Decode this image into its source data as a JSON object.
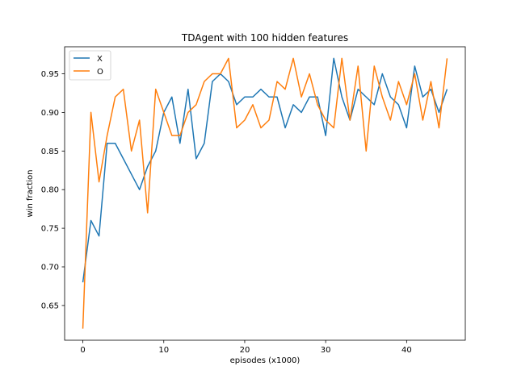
{
  "chart_data": {
    "type": "line",
    "title": "TDAgent with 100 hidden features",
    "xlabel": "episodes (x1000)",
    "ylabel": "win fraction",
    "xlim": [
      -2.25,
      47.25
    ],
    "ylim": [
      0.605,
      0.985
    ],
    "xticks": [
      0,
      10,
      20,
      30,
      40
    ],
    "xtick_labels": [
      "0",
      "10",
      "20",
      "30",
      "40"
    ],
    "yticks": [
      0.65,
      0.7,
      0.75,
      0.8,
      0.85,
      0.9,
      0.95
    ],
    "ytick_labels": [
      "0.65",
      "0.70",
      "0.75",
      "0.80",
      "0.85",
      "0.90",
      "0.95"
    ],
    "grid": false,
    "legend_position": "top-left",
    "x": [
      0,
      1,
      2,
      3,
      4,
      5,
      6,
      7,
      8,
      9,
      10,
      11,
      12,
      13,
      14,
      15,
      16,
      17,
      18,
      19,
      20,
      21,
      22,
      23,
      24,
      25,
      26,
      27,
      28,
      29,
      30,
      31,
      32,
      33,
      34,
      35,
      36,
      37,
      38,
      39,
      40,
      41,
      42,
      43,
      44,
      45
    ],
    "series": [
      {
        "name": "X",
        "color": "#1f77b4",
        "values": [
          0.68,
          0.76,
          0.74,
          0.86,
          0.86,
          0.84,
          0.82,
          0.8,
          0.83,
          0.85,
          0.9,
          0.92,
          0.86,
          0.93,
          0.84,
          0.86,
          0.94,
          0.95,
          0.94,
          0.91,
          0.92,
          0.92,
          0.93,
          0.92,
          0.92,
          0.88,
          0.91,
          0.9,
          0.92,
          0.92,
          0.87,
          0.97,
          0.92,
          0.89,
          0.93,
          0.92,
          0.91,
          0.95,
          0.92,
          0.91,
          0.88,
          0.96,
          0.92,
          0.93,
          0.9,
          0.93
        ]
      },
      {
        "name": "O",
        "color": "#ff7f0e",
        "values": [
          0.62,
          0.9,
          0.81,
          0.87,
          0.92,
          0.93,
          0.85,
          0.89,
          0.77,
          0.93,
          0.9,
          0.87,
          0.87,
          0.9,
          0.91,
          0.94,
          0.95,
          0.95,
          0.97,
          0.88,
          0.89,
          0.91,
          0.88,
          0.89,
          0.94,
          0.93,
          0.97,
          0.92,
          0.95,
          0.91,
          0.89,
          0.88,
          0.97,
          0.89,
          0.96,
          0.85,
          0.96,
          0.92,
          0.89,
          0.94,
          0.91,
          0.95,
          0.89,
          0.94,
          0.88,
          0.97
        ]
      }
    ]
  }
}
